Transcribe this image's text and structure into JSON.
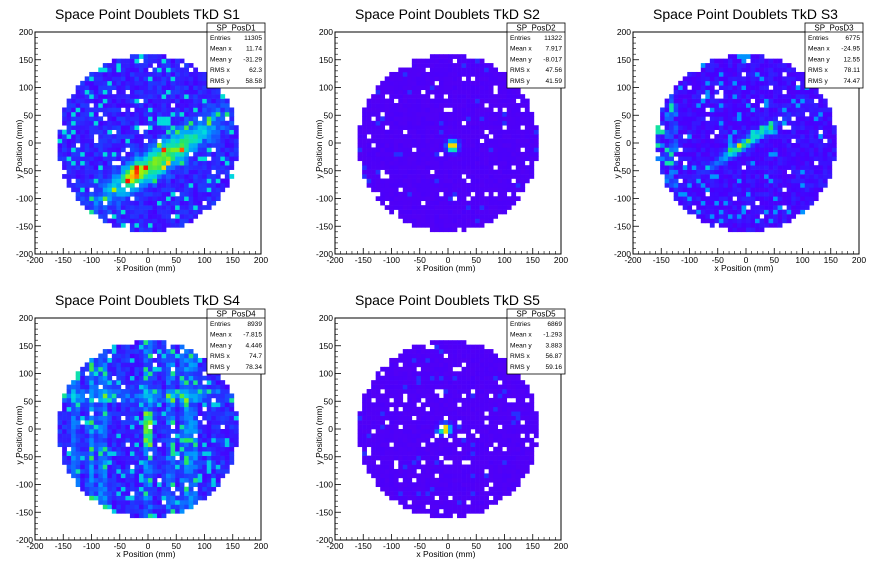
{
  "chart_data": [
    {
      "type": "heatmap",
      "title": "Space Point Doublets TkD S1",
      "xlabel": "x Position (mm)",
      "ylabel": "y Position (mm)",
      "xlim": [
        -200,
        200
      ],
      "ylim": [
        -200,
        200
      ],
      "x_ticks": [
        "-200",
        "-150",
        "-100",
        "-50",
        "0",
        "50",
        "100",
        "150",
        "200"
      ],
      "y_ticks": [
        "-200",
        "-150",
        "-100",
        "-50",
        "0",
        "50",
        "100",
        "150",
        "200"
      ],
      "grid": false,
      "distribution": {
        "radius": 160,
        "shape": "band",
        "center": [
          20,
          -30
        ],
        "angle_deg": 35,
        "peak": [
          -25,
          -55
        ]
      },
      "stats": {
        "name": "SP_PosD1",
        "rows": [
          {
            "label": "Entries",
            "value": "11305"
          },
          {
            "label": "Mean x",
            "value": "11.74"
          },
          {
            "label": "Mean y",
            "value": "-31.29"
          },
          {
            "label": "RMS x",
            "value": "62.3"
          },
          {
            "label": "RMS y",
            "value": "58.58"
          }
        ]
      }
    },
    {
      "type": "heatmap",
      "title": "Space Point Doublets TkD S2",
      "xlabel": "x Position (mm)",
      "ylabel": "y Position (mm)",
      "xlim": [
        -200,
        200
      ],
      "ylim": [
        -200,
        200
      ],
      "x_ticks": [
        "-200",
        "-150",
        "-100",
        "-50",
        "0",
        "50",
        "100",
        "150",
        "200"
      ],
      "y_ticks": [
        "-200",
        "-150",
        "-100",
        "-50",
        "0",
        "50",
        "100",
        "150",
        "200"
      ],
      "grid": false,
      "distribution": {
        "radius": 160,
        "shape": "spot",
        "center": [
          8,
          -5
        ]
      },
      "stats": {
        "name": "SP_PosD2",
        "rows": [
          {
            "label": "Entries",
            "value": "11322"
          },
          {
            "label": "Mean x",
            "value": "7.917"
          },
          {
            "label": "Mean y",
            "value": "-8.017"
          },
          {
            "label": "RMS x",
            "value": "47.56"
          },
          {
            "label": "RMS y",
            "value": "41.59"
          }
        ]
      }
    },
    {
      "type": "heatmap",
      "title": "Space Point Doublets TkD S3",
      "xlabel": "x Position (mm)",
      "ylabel": "y Position (mm)",
      "xlim": [
        -200,
        200
      ],
      "ylim": [
        -200,
        200
      ],
      "x_ticks": [
        "-200",
        "-150",
        "-100",
        "-50",
        "0",
        "50",
        "100",
        "150",
        "200"
      ],
      "y_ticks": [
        "-200",
        "-150",
        "-100",
        "-50",
        "0",
        "50",
        "100",
        "150",
        "200"
      ],
      "grid": false,
      "distribution": {
        "radius": 160,
        "shape": "streak",
        "center": [
          0,
          0
        ]
      },
      "stats": {
        "name": "SP_PosD3",
        "rows": [
          {
            "label": "Entries",
            "value": "6775"
          },
          {
            "label": "Mean x",
            "value": "-24.95"
          },
          {
            "label": "Mean y",
            "value": "12.55"
          },
          {
            "label": "RMS x",
            "value": "78.11"
          },
          {
            "label": "RMS y",
            "value": "74.47"
          }
        ]
      }
    },
    {
      "type": "heatmap",
      "title": "Space Point Doublets TkD S4",
      "xlabel": "x Position (mm)",
      "ylabel": "y Position (mm)",
      "xlim": [
        -200,
        200
      ],
      "ylim": [
        -200,
        200
      ],
      "x_ticks": [
        "-200",
        "-150",
        "-100",
        "-50",
        "0",
        "50",
        "100",
        "150",
        "200"
      ],
      "y_ticks": [
        "-200",
        "-150",
        "-100",
        "-50",
        "0",
        "50",
        "100",
        "150",
        "200"
      ],
      "grid": false,
      "distribution": {
        "radius": 160,
        "shape": "stripes",
        "center": [
          0,
          0
        ]
      },
      "stats": {
        "name": "SP_PosD4",
        "rows": [
          {
            "label": "Entries",
            "value": "8939"
          },
          {
            "label": "Mean x",
            "value": "-7.815"
          },
          {
            "label": "Mean y",
            "value": "4.446"
          },
          {
            "label": "RMS x",
            "value": "74.7"
          },
          {
            "label": "RMS y",
            "value": "78.34"
          }
        ]
      }
    },
    {
      "type": "heatmap",
      "title": "Space Point Doublets TkD S5",
      "xlabel": "x Position (mm)",
      "ylabel": "y Position (mm)",
      "xlim": [
        -200,
        200
      ],
      "ylim": [
        -200,
        200
      ],
      "x_ticks": [
        "-200",
        "-150",
        "-100",
        "-50",
        "0",
        "50",
        "100",
        "150",
        "200"
      ],
      "y_ticks": [
        "-200",
        "-150",
        "-100",
        "-50",
        "0",
        "50",
        "100",
        "150",
        "200"
      ],
      "grid": false,
      "distribution": {
        "radius": 160,
        "shape": "spot",
        "center": [
          -5,
          0
        ]
      },
      "stats": {
        "name": "SP_PosD5",
        "rows": [
          {
            "label": "Entries",
            "value": "6869"
          },
          {
            "label": "Mean x",
            "value": "-1.293"
          },
          {
            "label": "Mean y",
            "value": "3.883"
          },
          {
            "label": "RMS x",
            "value": "56.87"
          },
          {
            "label": "RMS y",
            "value": "59.16"
          }
        ]
      }
    }
  ]
}
